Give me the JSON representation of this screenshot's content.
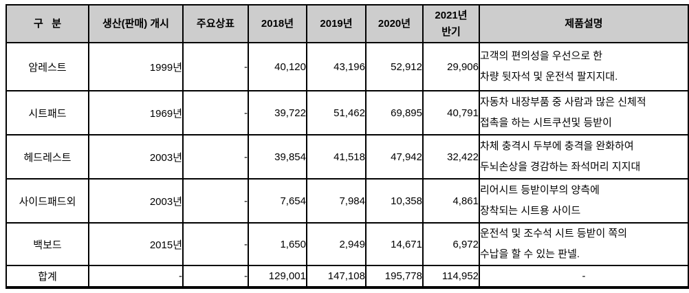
{
  "table": {
    "colors": {
      "header_bg": "#cdcdcd",
      "border": "#000000",
      "text": "#000000"
    },
    "header": {
      "col1": "구   분",
      "col2": "생산(판매) 개시",
      "col3": "주요상표",
      "col4": "2018년",
      "col5": "2019년",
      "col6": "2020년",
      "col7": "2021년\n반기",
      "col8": "제품설명"
    },
    "rows": [
      {
        "name": "암레스트",
        "start": "1999년",
        "brand": "-",
        "y2018": "40,120",
        "y2019": "43,196",
        "y2020": "52,912",
        "h2021": "29,906",
        "desc": "고객의 편의성을 우선으로 한\n차량 뒷자석 및 운전석 팔지지대."
      },
      {
        "name": "시트패드",
        "start": "1969년",
        "brand": "-",
        "y2018": "39,722",
        "y2019": "51,462",
        "y2020": "69,895",
        "h2021": "40,791",
        "desc": "자동차 내장부품 중 사람과 많은 신체적\n접촉을 하는 시트쿠션및 등받이"
      },
      {
        "name": "헤드레스트",
        "start": "2003년",
        "brand": "-",
        "y2018": "39,854",
        "y2019": "41,518",
        "y2020": "47,942",
        "h2021": "32,422",
        "desc": "차체 충격시 두부에 충격을 완화하여\n두뇌손상을 경감하는 좌석머리 지지대"
      },
      {
        "name": "사이드패드외",
        "start": "2003년",
        "brand": "-",
        "y2018": "7,654",
        "y2019": "7,984",
        "y2020": "10,358",
        "h2021": "4,861",
        "desc": "리어시트 등받이부의 양측에\n장착되는 시트용 사이드"
      },
      {
        "name": "백보드",
        "start": "2015년",
        "brand": "-",
        "y2018": "1,650",
        "y2019": "2,949",
        "y2020": "14,671",
        "h2021": "6,972",
        "desc": "운전석 및 조수석 시트 등받이 쪽의\n수납을 할 수 있는 판넬."
      }
    ],
    "total": {
      "name": "합계",
      "start": "-",
      "brand": "-",
      "y2018": "129,001",
      "y2019": "147,108",
      "y2020": "195,778",
      "h2021": "114,952",
      "desc": "-"
    }
  }
}
